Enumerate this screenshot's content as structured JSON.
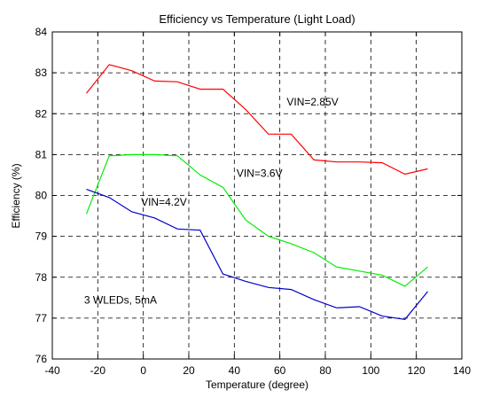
{
  "chart_data": {
    "type": "line",
    "title": "Efficiency  vs  Temperature (Light Load)",
    "xlabel": "Temperature (degree)",
    "ylabel": "Efficiency  (%)",
    "xlim": [
      -40,
      140
    ],
    "ylim": [
      76,
      84
    ],
    "xticks": [
      -40,
      -20,
      0,
      20,
      40,
      60,
      80,
      100,
      120,
      140
    ],
    "yticks": [
      76,
      77,
      78,
      79,
      80,
      81,
      82,
      83,
      84
    ],
    "grid": true,
    "grid_style": "dashed",
    "series": [
      {
        "name": "VIN=2.85V",
        "color": "#ff0000",
        "x": [
          -25,
          -15,
          -5,
          5,
          15,
          25,
          35,
          45,
          55,
          65,
          75,
          85,
          95,
          105,
          115,
          125
        ],
        "y": [
          82.5,
          83.2,
          83.05,
          82.8,
          82.78,
          82.6,
          82.6,
          82.1,
          81.5,
          81.5,
          80.87,
          80.82,
          80.82,
          80.8,
          80.52,
          80.65
        ]
      },
      {
        "name": "VIN=3.6V",
        "color": "#00ee00",
        "x": [
          -25,
          -15,
          -5,
          5,
          15,
          25,
          35,
          45,
          55,
          65,
          75,
          85,
          95,
          105,
          115,
          125
        ],
        "y": [
          79.55,
          80.97,
          81.0,
          81.0,
          80.97,
          80.5,
          80.2,
          79.4,
          79.0,
          78.82,
          78.6,
          78.25,
          78.15,
          78.05,
          77.78,
          78.25
        ]
      },
      {
        "name": "VIN=4.2V",
        "color": "#0000cc",
        "x": [
          -25,
          -15,
          -5,
          5,
          15,
          25,
          35,
          45,
          55,
          65,
          75,
          85,
          95,
          105,
          115,
          125
        ],
        "y": [
          80.15,
          79.95,
          79.6,
          79.45,
          79.18,
          79.15,
          78.08,
          77.9,
          77.75,
          77.7,
          77.45,
          77.25,
          77.28,
          77.05,
          76.97,
          77.65
        ]
      }
    ],
    "annotations": [
      {
        "text": "VIN=2.85V",
        "x": 63,
        "y": 82.2
      },
      {
        "text": "VIN=3.6V",
        "x": 41,
        "y": 80.45
      },
      {
        "text": "VIN=4.2V",
        "x": -1,
        "y": 79.75
      },
      {
        "text": "3 WLEDs, 5mA",
        "x": -26,
        "y": 77.35
      }
    ]
  }
}
